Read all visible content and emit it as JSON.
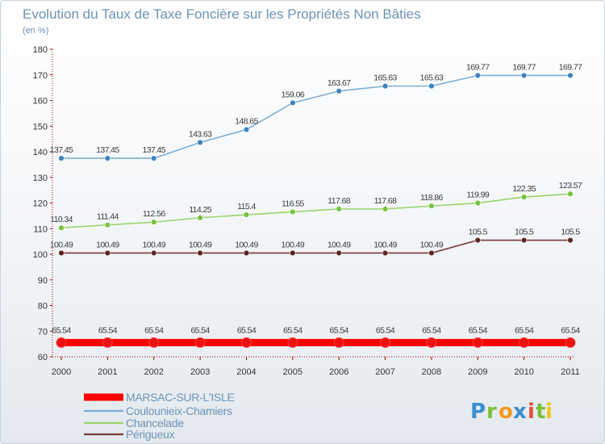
{
  "chart_data": {
    "type": "line",
    "title": "Evolution du Taux de Taxe Foncière sur les Propriétés Non Bâties",
    "subtitle": "(en %)",
    "xlabel": "",
    "ylabel": "",
    "ylim": [
      60,
      180
    ],
    "yticks": [
      60,
      70,
      80,
      90,
      100,
      110,
      120,
      130,
      140,
      150,
      160,
      170,
      180
    ],
    "categories": [
      "2000",
      "2001",
      "2002",
      "2003",
      "2004",
      "2005",
      "2006",
      "2007",
      "2008",
      "2009",
      "2010",
      "2011"
    ],
    "grid": false,
    "legend_position": "bottom-left",
    "series": [
      {
        "name": "MARSAC-SUR-L'ISLE",
        "color": "#ff0000",
        "marker_color": "#ee1111",
        "emphasis": true,
        "values": [
          65.54,
          65.54,
          65.54,
          65.54,
          65.54,
          65.54,
          65.54,
          65.54,
          65.54,
          65.54,
          65.54,
          65.54
        ],
        "labels": [
          "65.54",
          "65.54",
          "65.54",
          "65.54",
          "65.54",
          "65.54",
          "65.54",
          "65.54",
          "65.54",
          "65.54",
          "65.54",
          "65.54"
        ]
      },
      {
        "name": "Coulounieix-Chamiers",
        "color": "#7aaed6",
        "marker_color": "#3f83bf",
        "emphasis": false,
        "values": [
          137.45,
          137.45,
          137.45,
          143.63,
          148.65,
          159.06,
          163.67,
          165.63,
          165.63,
          169.77,
          169.77,
          169.77
        ],
        "labels": [
          "137.45",
          "137.45",
          "137.45",
          "143.63",
          "148.65",
          "159.06",
          "163.67",
          "165.63",
          "165.63",
          "169.77",
          "169.77",
          "169.77"
        ]
      },
      {
        "name": "Chancelade",
        "color": "#9ad46a",
        "marker_color": "#76c23c",
        "emphasis": false,
        "values": [
          110.34,
          111.44,
          112.56,
          114.25,
          115.4,
          116.55,
          117.68,
          117.68,
          118.86,
          119.99,
          122.35,
          123.57
        ],
        "labels": [
          "110.34",
          "111.44",
          "112.56",
          "114.25",
          "115.4",
          "116.55",
          "117.68",
          "117.68",
          "118.86",
          "119.99",
          "122.35",
          "123.57"
        ]
      },
      {
        "name": "Périgueux",
        "color": "#7a3a3a",
        "marker_color": "#5e2323",
        "emphasis": false,
        "values": [
          100.49,
          100.49,
          100.49,
          100.49,
          100.49,
          100.49,
          100.49,
          100.49,
          100.49,
          105.5,
          105.5,
          105.5
        ],
        "labels": [
          "100.49",
          "100.49",
          "100.49",
          "100.49",
          "100.49",
          "100.49",
          "100.49",
          "100.49",
          "100.49",
          "105.5",
          "105.5",
          "105.5"
        ]
      }
    ]
  },
  "logo": {
    "letters": [
      "P",
      "r",
      "o",
      "x",
      "i",
      "t",
      "i"
    ],
    "colors": [
      "#3a8ed0",
      "#7bbf3a",
      "#f29a1f",
      "#3a8ed0",
      "#e84c3d",
      "#7bbf3a",
      "#f2c31f"
    ]
  }
}
